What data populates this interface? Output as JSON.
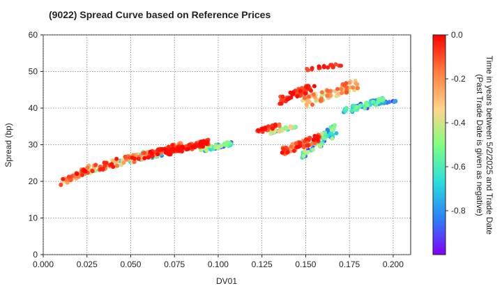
{
  "chart_data": {
    "type": "scatter",
    "title": "(9022)   Spread Curve based on Reference Prices",
    "xlabel": "DV01",
    "ylabel": "Spread (bp)",
    "xlim": [
      0.0,
      0.21
    ],
    "ylim": [
      0,
      60
    ],
    "xticks": [
      "0.000",
      "0.025",
      "0.050",
      "0.075",
      "0.100",
      "0.125",
      "0.150",
      "0.175",
      "0.200"
    ],
    "yticks": [
      "0",
      "10",
      "20",
      "30",
      "40",
      "50",
      "60"
    ],
    "grid": true,
    "colorbar": {
      "label_lines": [
        "Time in years between 5/2/2025 and Trade Date",
        "(Past Trade Date is given as negative)"
      ],
      "range": [
        -1.0,
        0.0
      ],
      "ticks": [
        "0.0",
        "-0.2",
        "-0.4",
        "-0.6",
        "-0.8"
      ],
      "colormap": "rainbow",
      "colors": [
        "#8000ff",
        "#2c7ef7",
        "#2adddd",
        "#80ff80",
        "#ffd48e",
        "#ff7f40",
        "#ff0000"
      ]
    },
    "clusters": [
      {
        "x": [
          0.01,
          0.025
        ],
        "y": [
          18.5,
          24
        ],
        "t": [
          0.0,
          -0.35
        ],
        "n": 50
      },
      {
        "x": [
          0.018,
          0.03
        ],
        "y": [
          21,
          24
        ],
        "t": [
          -0.3,
          -0.8
        ],
        "n": 25
      },
      {
        "x": [
          0.025,
          0.06
        ],
        "y": [
          22,
          28.5
        ],
        "t": [
          0.0,
          -0.5
        ],
        "n": 90
      },
      {
        "x": [
          0.04,
          0.07
        ],
        "y": [
          24,
          29
        ],
        "t": [
          -0.2,
          -0.85
        ],
        "n": 45
      },
      {
        "x": [
          0.06,
          0.08
        ],
        "y": [
          26.5,
          31
        ],
        "t": [
          0.0,
          -0.3
        ],
        "n": 70
      },
      {
        "x": [
          0.07,
          0.095
        ],
        "y": [
          27,
          31.5
        ],
        "t": [
          0.0,
          -0.15
        ],
        "n": 110
      },
      {
        "x": [
          0.09,
          0.108
        ],
        "y": [
          28,
          31
        ],
        "t": [
          -0.4,
          -0.9
        ],
        "n": 60
      },
      {
        "x": [
          0.122,
          0.135
        ],
        "y": [
          33,
          36
        ],
        "t": [
          0.0,
          -0.2
        ],
        "n": 35
      },
      {
        "x": [
          0.13,
          0.145
        ],
        "y": [
          33,
          35.5
        ],
        "t": [
          -0.3,
          -0.9
        ],
        "n": 35
      },
      {
        "x": [
          0.136,
          0.158
        ],
        "y": [
          27,
          33
        ],
        "t": [
          0.0,
          -0.25
        ],
        "n": 70
      },
      {
        "x": [
          0.148,
          0.168
        ],
        "y": [
          26,
          36
        ],
        "t": [
          -0.4,
          -0.95
        ],
        "n": 70
      },
      {
        "x": [
          0.135,
          0.155
        ],
        "y": [
          41,
          47
        ],
        "t": [
          0.0,
          -0.15
        ],
        "n": 55
      },
      {
        "x": [
          0.148,
          0.18
        ],
        "y": [
          40,
          48
        ],
        "t": [
          -0.1,
          -0.45
        ],
        "n": 90
      },
      {
        "x": [
          0.17,
          0.195
        ],
        "y": [
          38,
          43
        ],
        "t": [
          -0.5,
          -0.95
        ],
        "n": 70
      },
      {
        "x": [
          0.15,
          0.172
        ],
        "y": [
          50,
          52.5
        ],
        "t": [
          0.0,
          -0.1
        ],
        "n": 18
      },
      {
        "x": [
          0.185,
          0.202
        ],
        "y": [
          41,
          42
        ],
        "t": [
          -0.75,
          -1.0
        ],
        "n": 18
      }
    ]
  }
}
